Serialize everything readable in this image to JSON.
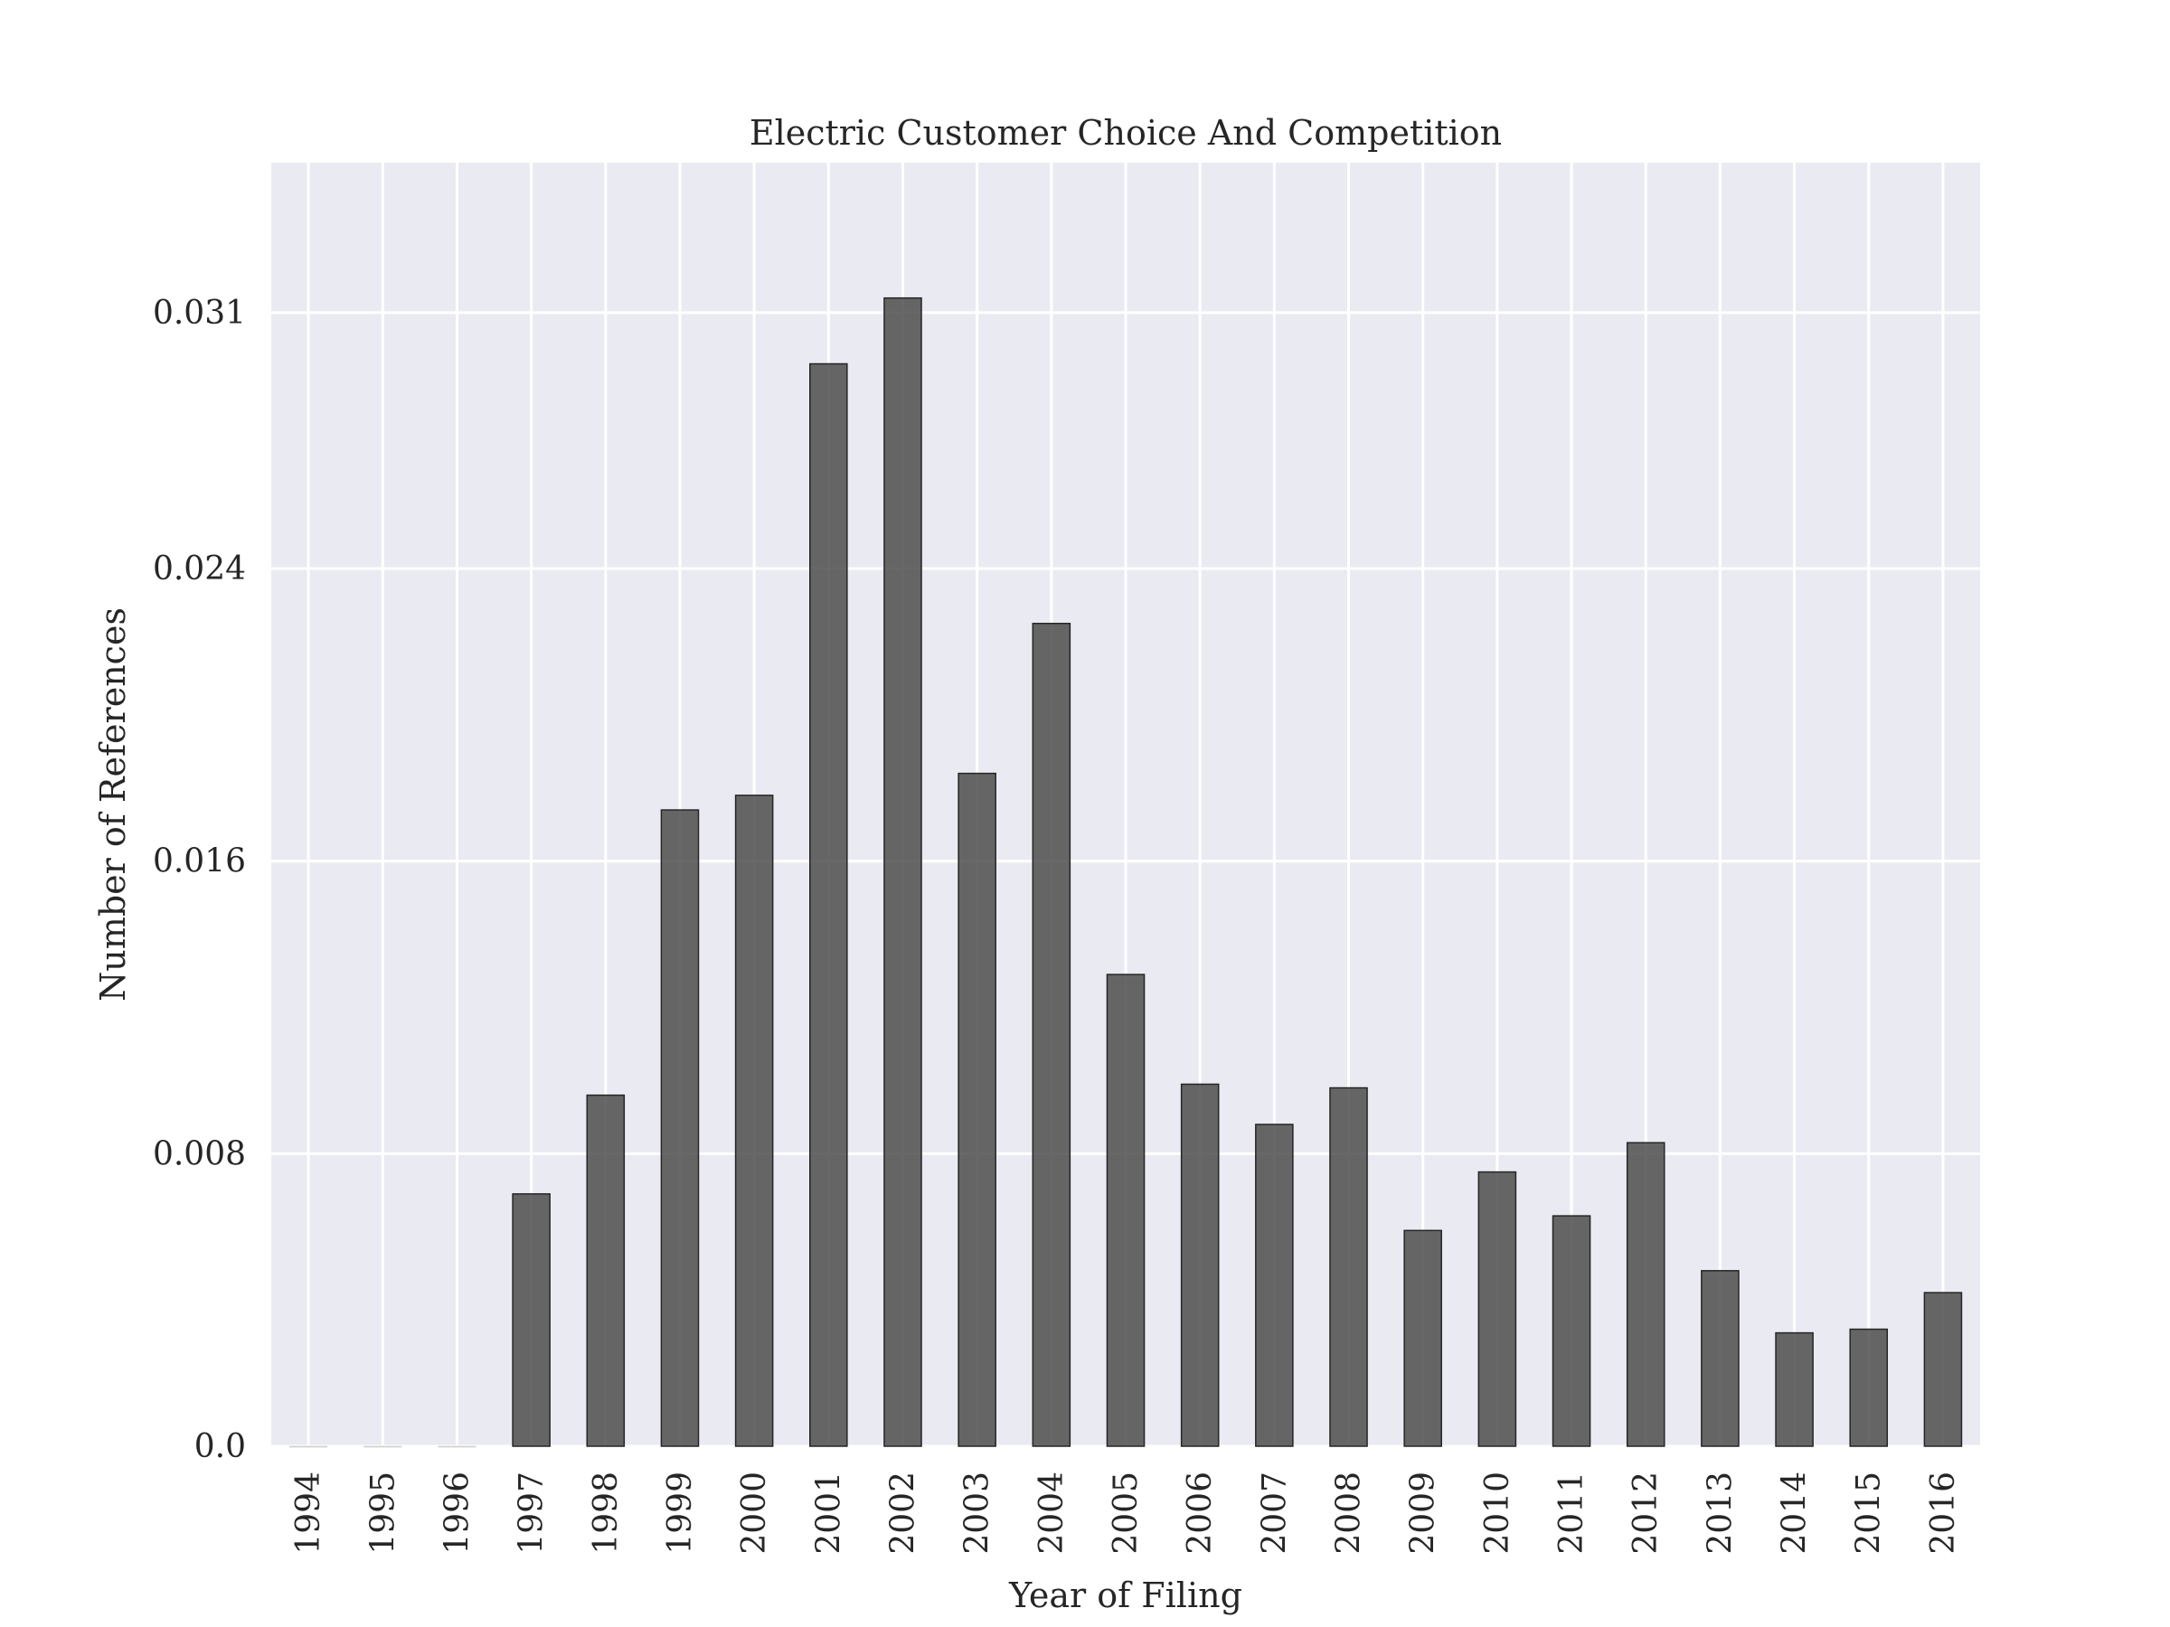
{
  "chart_data": {
    "type": "bar",
    "title": "Electric Customer Choice And Competition",
    "xlabel": "Year of Filing",
    "ylabel": "Number of References",
    "categories": [
      "1994",
      "1995",
      "1996",
      "1997",
      "1998",
      "1999",
      "2000",
      "2001",
      "2002",
      "2003",
      "2004",
      "2005",
      "2006",
      "2007",
      "2008",
      "2009",
      "2010",
      "2011",
      "2012",
      "2013",
      "2014",
      "2015",
      "2016"
    ],
    "values": [
      0,
      0,
      0,
      0.0069,
      0.0096,
      0.0174,
      0.0178,
      0.0296,
      0.0314,
      0.0184,
      0.0225,
      0.0129,
      0.0099,
      0.0088,
      0.0098,
      0.0059,
      0.0075,
      0.0063,
      0.0083,
      0.0048,
      0.0031,
      0.0032,
      0.0042
    ],
    "yticks": [
      "0.0",
      "0.008",
      "0.016",
      "0.024",
      "0.031"
    ],
    "ylim": [
      0,
      0.0351
    ],
    "grid": true,
    "colors": {
      "bar_fill": "#4d4d4d",
      "bar_stroke": "#262626",
      "plot_background": "#eaeaf2",
      "grid": "#ffffff"
    }
  }
}
